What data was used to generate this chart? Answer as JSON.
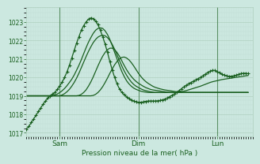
{
  "bg_color": "#cce8e0",
  "plot_bg_color": "#cce8e0",
  "grid_major_color": "#b0d0c0",
  "grid_minor_color": "#c0ddd4",
  "line_color": "#1a6020",
  "ylim": [
    1016.8,
    1023.8
  ],
  "xlim": [
    0,
    95
  ],
  "yticks": [
    1017,
    1018,
    1019,
    1020,
    1021,
    1022,
    1023
  ],
  "xtick_positions": [
    14,
    47,
    80
  ],
  "xtick_labels": [
    "Sam",
    "Dim",
    "Lun"
  ],
  "vline_positions": [
    14,
    47,
    80
  ],
  "xlabel": "Pression niveau de la mer( hPa )",
  "series": {
    "main": [
      1017.2,
      1017.35,
      1017.55,
      1017.75,
      1017.95,
      1018.15,
      1018.35,
      1018.55,
      1018.72,
      1018.88,
      1019.0,
      1019.1,
      1019.2,
      1019.35,
      1019.55,
      1019.75,
      1020.0,
      1020.3,
      1020.65,
      1021.05,
      1021.45,
      1021.85,
      1022.2,
      1022.55,
      1022.8,
      1023.0,
      1023.15,
      1023.22,
      1023.18,
      1023.05,
      1022.85,
      1022.55,
      1022.2,
      1021.8,
      1021.35,
      1020.85,
      1020.4,
      1020.0,
      1019.65,
      1019.38,
      1019.2,
      1019.05,
      1018.95,
      1018.85,
      1018.78,
      1018.72,
      1018.68,
      1018.65,
      1018.65,
      1018.67,
      1018.7,
      1018.72,
      1018.72,
      1018.72,
      1018.72,
      1018.73,
      1018.75,
      1018.78,
      1018.82,
      1018.88,
      1018.95,
      1019.02,
      1019.1,
      1019.18,
      1019.28,
      1019.38,
      1019.48,
      1019.57,
      1019.65,
      1019.72,
      1019.79,
      1019.86,
      1019.93,
      1020.0,
      1020.08,
      1020.17,
      1020.26,
      1020.33,
      1020.38,
      1020.37,
      1020.32,
      1020.25,
      1020.18,
      1020.12,
      1020.08,
      1020.06,
      1020.06,
      1020.08,
      1020.12,
      1020.16,
      1020.2,
      1020.22,
      1020.22,
      1020.2
    ],
    "line2": [
      1019.0,
      1019.0,
      1019.0,
      1019.0,
      1019.0,
      1019.0,
      1019.0,
      1019.0,
      1019.0,
      1019.0,
      1019.0,
      1019.0,
      1019.05,
      1019.1,
      1019.18,
      1019.28,
      1019.4,
      1019.55,
      1019.72,
      1019.9,
      1020.12,
      1020.38,
      1020.65,
      1020.95,
      1021.28,
      1021.6,
      1021.9,
      1022.15,
      1022.38,
      1022.55,
      1022.65,
      1022.68,
      1022.65,
      1022.52,
      1022.32,
      1022.05,
      1021.72,
      1021.35,
      1021.0,
      1020.65,
      1020.32,
      1020.05,
      1019.82,
      1019.65,
      1019.52,
      1019.42,
      1019.35,
      1019.3,
      1019.25,
      1019.22,
      1019.2,
      1019.18,
      1019.18,
      1019.18,
      1019.18,
      1019.18,
      1019.18,
      1019.18,
      1019.18,
      1019.18,
      1019.18,
      1019.18,
      1019.18,
      1019.18,
      1019.2,
      1019.22,
      1019.25,
      1019.28,
      1019.32,
      1019.36,
      1019.4,
      1019.44,
      1019.48,
      1019.52,
      1019.57,
      1019.62,
      1019.67,
      1019.72,
      1019.76,
      1019.79,
      1019.82,
      1019.85,
      1019.88,
      1019.9,
      1019.92,
      1019.94,
      1019.96,
      1019.98,
      1020.0,
      1020.02,
      1020.04,
      1020.06,
      1020.08,
      1020.1
    ],
    "line3": [
      1019.0,
      1019.0,
      1019.0,
      1019.0,
      1019.0,
      1019.0,
      1019.0,
      1019.0,
      1019.0,
      1019.0,
      1019.0,
      1019.0,
      1019.0,
      1019.0,
      1019.0,
      1019.05,
      1019.12,
      1019.22,
      1019.35,
      1019.52,
      1019.72,
      1019.95,
      1020.22,
      1020.52,
      1020.82,
      1021.12,
      1021.4,
      1021.65,
      1021.88,
      1022.05,
      1022.18,
      1022.25,
      1022.28,
      1022.25,
      1022.15,
      1022.0,
      1021.78,
      1021.52,
      1021.22,
      1020.92,
      1020.62,
      1020.35,
      1020.12,
      1019.92,
      1019.75,
      1019.62,
      1019.52,
      1019.45,
      1019.38,
      1019.32,
      1019.28,
      1019.25,
      1019.22,
      1019.2,
      1019.18,
      1019.18,
      1019.18,
      1019.18,
      1019.18,
      1019.18,
      1019.18,
      1019.18,
      1019.18,
      1019.18,
      1019.18,
      1019.18,
      1019.18,
      1019.18,
      1019.18,
      1019.18,
      1019.18,
      1019.18,
      1019.18,
      1019.18,
      1019.18,
      1019.18,
      1019.18,
      1019.18,
      1019.18,
      1019.18,
      1019.18,
      1019.18,
      1019.18,
      1019.18,
      1019.18,
      1019.18,
      1019.18,
      1019.18,
      1019.18,
      1019.18,
      1019.18,
      1019.18,
      1019.18,
      1019.18
    ],
    "line4": [
      1019.0,
      1019.0,
      1019.0,
      1019.0,
      1019.0,
      1019.0,
      1019.0,
      1019.0,
      1019.0,
      1019.0,
      1019.0,
      1019.0,
      1019.0,
      1019.0,
      1019.0,
      1019.0,
      1019.0,
      1019.0,
      1019.0,
      1019.0,
      1019.0,
      1019.0,
      1019.02,
      1019.08,
      1019.18,
      1019.32,
      1019.52,
      1019.75,
      1020.02,
      1020.32,
      1020.62,
      1020.9,
      1021.15,
      1021.35,
      1021.5,
      1021.58,
      1021.58,
      1021.5,
      1021.35,
      1021.15,
      1020.9,
      1020.65,
      1020.42,
      1020.22,
      1020.05,
      1019.9,
      1019.78,
      1019.68,
      1019.6,
      1019.52,
      1019.45,
      1019.4,
      1019.35,
      1019.32,
      1019.3,
      1019.28,
      1019.26,
      1019.24,
      1019.22,
      1019.2,
      1019.18,
      1019.18,
      1019.18,
      1019.18,
      1019.18,
      1019.18,
      1019.18,
      1019.18,
      1019.18,
      1019.18,
      1019.18,
      1019.18,
      1019.18,
      1019.18,
      1019.18,
      1019.18,
      1019.18,
      1019.18,
      1019.18,
      1019.18,
      1019.18,
      1019.18,
      1019.18,
      1019.18,
      1019.18,
      1019.18,
      1019.18,
      1019.18,
      1019.18,
      1019.18,
      1019.18,
      1019.18,
      1019.18,
      1019.18
    ],
    "line5": [
      1019.0,
      1019.0,
      1019.0,
      1019.0,
      1019.0,
      1019.0,
      1019.0,
      1019.0,
      1019.0,
      1019.0,
      1019.0,
      1019.0,
      1019.0,
      1019.0,
      1019.0,
      1019.0,
      1019.0,
      1019.0,
      1019.0,
      1019.0,
      1019.0,
      1019.0,
      1019.0,
      1019.0,
      1019.0,
      1019.0,
      1019.0,
      1019.0,
      1019.02,
      1019.08,
      1019.18,
      1019.32,
      1019.5,
      1019.72,
      1019.96,
      1020.22,
      1020.46,
      1020.68,
      1020.86,
      1021.0,
      1021.08,
      1021.1,
      1021.05,
      1020.95,
      1020.8,
      1020.62,
      1020.42,
      1020.22,
      1020.05,
      1019.9,
      1019.78,
      1019.68,
      1019.6,
      1019.52,
      1019.46,
      1019.42,
      1019.38,
      1019.35,
      1019.32,
      1019.3,
      1019.28,
      1019.26,
      1019.24,
      1019.22,
      1019.2,
      1019.18,
      1019.18,
      1019.18,
      1019.18,
      1019.18,
      1019.18,
      1019.18,
      1019.18,
      1019.18,
      1019.18,
      1019.18,
      1019.18,
      1019.18,
      1019.18,
      1019.18,
      1019.18,
      1019.18,
      1019.18,
      1019.18,
      1019.18,
      1019.18,
      1019.18,
      1019.18,
      1019.18,
      1019.18,
      1019.18,
      1019.18,
      1019.18,
      1019.18
    ]
  }
}
